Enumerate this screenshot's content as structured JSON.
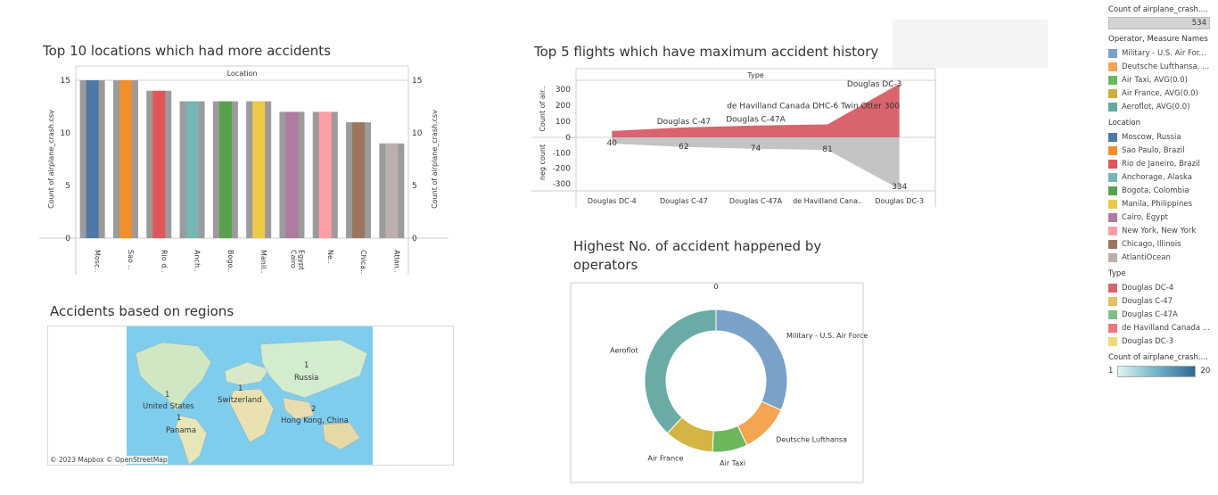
{
  "titles": {
    "bar": "Top 10 locations which had more accidents",
    "area": "Top 5 flights which have maximum accident history",
    "map": "Accidents based on regions",
    "donut_line1": "Highest No. of accident happened by",
    "donut_line2": "operators"
  },
  "chart_data": [
    {
      "type": "bar",
      "header": "Location",
      "ylabel": "Count of airplane_crash.csv",
      "ylim": [
        0,
        15
      ],
      "yticks": [
        "15",
        "10",
        "5",
        "0"
      ],
      "categories": [
        "Mosc..",
        "Sao ..",
        "Rio d..",
        "Anch..",
        "Bogo..",
        "Manil..",
        "Cairo, Egypt",
        "Ne..",
        "Chica..",
        "Atlan.."
      ],
      "values": [
        15,
        15,
        14,
        13,
        13,
        13,
        12,
        12,
        11,
        9
      ],
      "colors": [
        "#4e79a7",
        "#f28e2b",
        "#e15759",
        "#76b7b2",
        "#59a14f",
        "#edc948",
        "#b07aa1",
        "#ff9da7",
        "#9c755f",
        "#bab0ac"
      ]
    },
    {
      "type": "area",
      "header": "Type",
      "ylabel_top": "Count of air..",
      "ylabel_bottom": "neg count",
      "yticks_top": [
        "300",
        "200",
        "100",
        "0"
      ],
      "yticks_bottom": [
        "-100",
        "-200",
        "-300"
      ],
      "categories": [
        "Douglas DC-4",
        "Douglas C-47",
        "Douglas C-47A",
        "de Havilland Cana..",
        "Douglas DC-3"
      ],
      "values": [
        40,
        62,
        74,
        81,
        334
      ],
      "value_labels": [
        "40",
        "62",
        "74",
        "81",
        "334"
      ],
      "top_labels": [
        "Douglas C-47",
        "Douglas C-47A",
        "de Havilland Canada DHC-6 Twin Otter 300",
        "Douglas DC-3"
      ],
      "ylim": [
        -334,
        334
      ],
      "colors": {
        "top": "#d9646e",
        "bottom": "#c4c4c4"
      }
    },
    {
      "type": "pie",
      "top_tick": "0",
      "slices": [
        {
          "label": "Military - U.S. Air Force",
          "value": 40,
          "color": "#7aa2c8"
        },
        {
          "label": "Deutsche Lufthansa",
          "value": 14,
          "color": "#f5a452"
        },
        {
          "label": "Air Taxi",
          "value": 10,
          "color": "#6cb75c"
        },
        {
          "label": "Air France",
          "value": 14,
          "color": "#d4b443"
        },
        {
          "label": "Aeroflot",
          "value": 48,
          "color": "#6aaba5"
        }
      ]
    }
  ],
  "map": {
    "labels": [
      {
        "text": "1",
        "k": "a"
      },
      {
        "text": "Russia",
        "k": "b"
      },
      {
        "text": "1",
        "k": "c"
      },
      {
        "text": "Switzerland",
        "k": "d"
      },
      {
        "text": "1",
        "k": "e"
      },
      {
        "text": "United States",
        "k": "f"
      },
      {
        "text": "1",
        "k": "g"
      },
      {
        "text": "Panama",
        "k": "h"
      },
      {
        "text": "2",
        "k": "i"
      },
      {
        "text": "Hong Kong, China",
        "k": "j"
      }
    ],
    "attribution": "© 2023 Mapbox  © OpenStreetMap"
  },
  "legend": {
    "count_title": "Count of airplane_crash....",
    "count_value": "534",
    "operator_title": "Operator, Measure Names",
    "operators": [
      {
        "label": "Military - U.S. Air For...",
        "color": "#7aa2c8"
      },
      {
        "label": "Deutsche Lufthansa, ...",
        "color": "#f5a452"
      },
      {
        "label": "Air Taxi, AVG(0.0)",
        "color": "#6cb75c"
      },
      {
        "label": "Air France, AVG(0.0)",
        "color": "#c8b03c"
      },
      {
        "label": "Aeroflot, AVG(0.0)",
        "color": "#5fa8a3"
      }
    ],
    "location_title": "Location",
    "locations": [
      {
        "label": "Moscow, Russia",
        "color": "#4e79a7"
      },
      {
        "label": "Sao Paulo, Brazil",
        "color": "#f28e2b"
      },
      {
        "label": "Rio de Janeiro, Brazil",
        "color": "#e15759"
      },
      {
        "label": "Anchorage, Alaska",
        "color": "#76b7b2"
      },
      {
        "label": "Bogota, Colombia",
        "color": "#59a14f"
      },
      {
        "label": "Manila, Philippines",
        "color": "#edc948"
      },
      {
        "label": "Cairo, Egypt",
        "color": "#b07aa1"
      },
      {
        "label": "New York, New York",
        "color": "#ff9da7"
      },
      {
        "label": "Chicago, Illinois",
        "color": "#9c755f"
      },
      {
        "label": "AtlantiOcean",
        "color": "#bab0ac"
      }
    ],
    "type_title": "Type",
    "types": [
      {
        "label": "Douglas DC-4",
        "color": "#d9646e"
      },
      {
        "label": "Douglas C-47",
        "color": "#e8be63"
      },
      {
        "label": "Douglas C-47A",
        "color": "#7dbf8a"
      },
      {
        "label": "de Havilland Canada ...",
        "color": "#e8787a"
      },
      {
        "label": "Douglas DC-3",
        "color": "#f0d97e"
      }
    ],
    "grad_title": "Count of airplane_crash....",
    "grad_min": "1",
    "grad_max": "20"
  }
}
